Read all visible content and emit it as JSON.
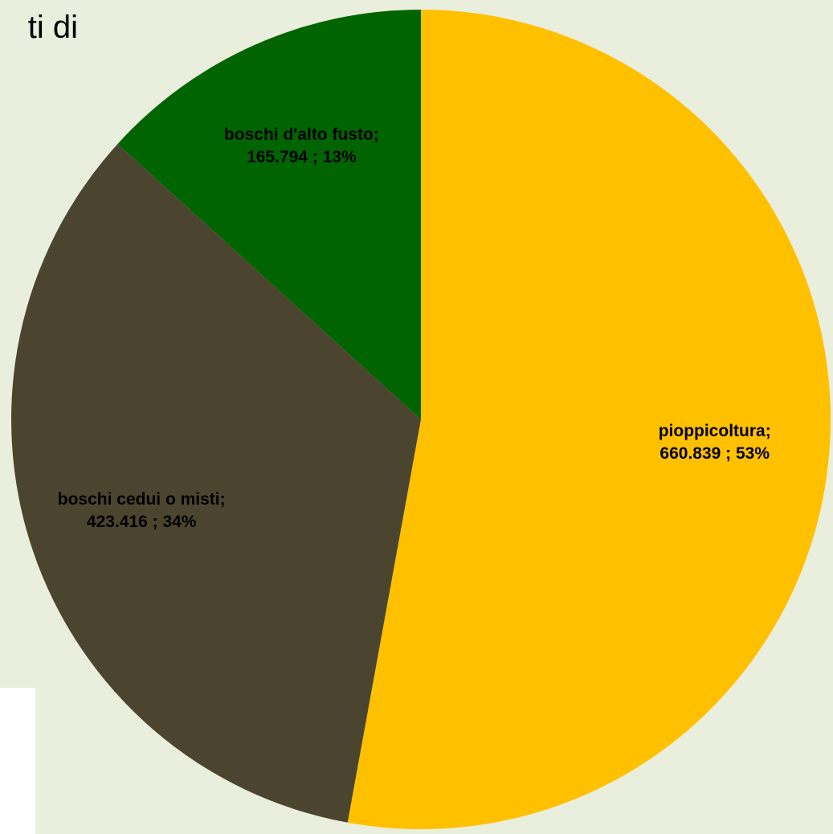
{
  "chart_data": {
    "type": "pie",
    "title": "ti di",
    "categories": [
      "pioppicoltura;",
      "boschi cedui o misti;",
      "boschi d'alto fusto;"
    ],
    "values": [
      660839,
      423416,
      165794
    ],
    "value_labels": [
      "660.839 ; 53%",
      "423.416 ; 34%",
      "165.794 ; 13%"
    ],
    "colors": [
      "#ffc000",
      "#4b452f",
      "#006400"
    ]
  }
}
